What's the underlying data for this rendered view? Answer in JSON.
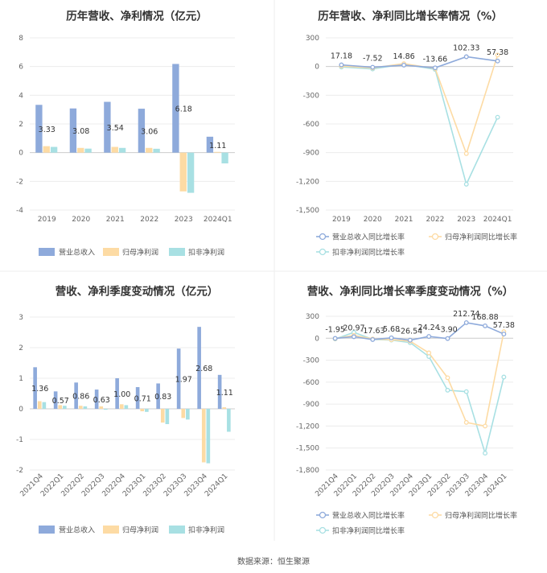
{
  "source": "数据来源：恒生聚源",
  "chart_data": [
    {
      "type": "bar",
      "title": "历年营收、净利情况（亿元）",
      "categories": [
        "2019",
        "2020",
        "2021",
        "2022",
        "2023",
        "2024Q1"
      ],
      "series": [
        {
          "name": "营业总收入",
          "color": "#8eaadb",
          "values": [
            3.33,
            3.08,
            3.54,
            3.06,
            6.18,
            1.11
          ]
        },
        {
          "name": "归母净利润",
          "color": "#fddba4",
          "values": [
            0.45,
            0.33,
            0.4,
            0.33,
            -2.7,
            0.05
          ]
        },
        {
          "name": "扣非净利润",
          "color": "#a8e0e3",
          "values": [
            0.4,
            0.28,
            0.33,
            0.27,
            -2.8,
            -0.75
          ]
        }
      ],
      "labels": [
        "3.33",
        "3.08",
        "3.54",
        "3.06",
        "6.18",
        "1.11"
      ],
      "ylim": [
        -4,
        8
      ],
      "yticks": [
        "8",
        "6",
        "4",
        "2",
        "0",
        "-2",
        "-4"
      ],
      "grid": true,
      "legend": "bottom"
    },
    {
      "type": "line",
      "title": "历年营收、净利同比增长率情况（%）",
      "categories": [
        "2019",
        "2020",
        "2021",
        "2022",
        "2023",
        "2024Q1"
      ],
      "series": [
        {
          "name": "营业总收入同比增长率",
          "color": "#8eaadb",
          "values": [
            17.18,
            -7.52,
            14.86,
            -13.66,
            102.33,
            57.38
          ]
        },
        {
          "name": "归母净利润同比增长率",
          "color": "#fddba4",
          "values": [
            5,
            -15,
            30,
            -20,
            -910,
            120
          ]
        },
        {
          "name": "扣非净利润同比增长率",
          "color": "#a8e0e3",
          "values": [
            -5,
            -25,
            25,
            -30,
            -1230,
            -530
          ]
        }
      ],
      "labels": [
        "17.18",
        "-7.52",
        "14.86",
        "-13.66",
        "102.33",
        "57.38"
      ],
      "ylim": [
        -1500,
        300
      ],
      "yticks": [
        "300",
        "0",
        "-300",
        "-600",
        "-900",
        "-1,200",
        "-1,500"
      ],
      "grid": true,
      "legend": "bottom"
    },
    {
      "type": "bar",
      "title": "营收、净利季度变动情况（亿元）",
      "categories": [
        "2021Q4",
        "2022Q1",
        "2022Q2",
        "2022Q3",
        "2022Q4",
        "2023Q1",
        "2023Q2",
        "2023Q3",
        "2023Q4",
        "2024Q1"
      ],
      "series": [
        {
          "name": "营业总收入",
          "color": "#8eaadb",
          "values": [
            1.36,
            0.57,
            0.86,
            0.63,
            1.0,
            0.71,
            0.83,
            1.97,
            2.68,
            1.11
          ]
        },
        {
          "name": "归母净利润",
          "color": "#fddba4",
          "values": [
            0.25,
            0.12,
            0.1,
            0.08,
            0.15,
            -0.08,
            -0.45,
            -0.3,
            -1.75,
            0.05
          ]
        },
        {
          "name": "扣非净利润",
          "color": "#a8e0e3",
          "values": [
            0.22,
            0.1,
            0.08,
            -0.03,
            0.12,
            -0.1,
            -0.5,
            -0.35,
            -1.78,
            -0.75
          ]
        }
      ],
      "labels": [
        "1.36",
        "0.57",
        "0.86",
        "0.63",
        "1.00",
        "0.71",
        "0.83",
        "1.97",
        "2.68",
        "1.11"
      ],
      "ylim": [
        -2,
        3
      ],
      "yticks": [
        "3",
        "2",
        "1",
        "0",
        "-1",
        "-2"
      ],
      "grid": true,
      "legend": "bottom"
    },
    {
      "type": "line",
      "title": "营收、净利同比增长率季度变动情况（%）",
      "categories": [
        "2021Q4",
        "2022Q1",
        "2022Q2",
        "2022Q3",
        "2022Q4",
        "2023Q1",
        "2023Q2",
        "2023Q3",
        "2023Q4",
        "2024Q1"
      ],
      "series": [
        {
          "name": "营业总收入同比增长率",
          "color": "#8eaadb",
          "values": [
            -1.95,
            20.97,
            -17.63,
            5.68,
            -26.54,
            24.24,
            -3.9,
            212.74,
            168.88,
            57.38
          ]
        },
        {
          "name": "归母净利润同比增长率",
          "color": "#fddba4",
          "values": [
            -5,
            40,
            -10,
            -20,
            -40,
            -200,
            -540,
            -1150,
            -1200,
            90
          ]
        },
        {
          "name": "扣非净利润同比增长率",
          "color": "#a8e0e3",
          "values": [
            -10,
            80,
            -15,
            -25,
            -60,
            -250,
            -710,
            -730,
            -1570,
            -530
          ]
        }
      ],
      "labels": [
        "-1.95",
        "20.97",
        "-17.63",
        "5.68",
        "-26.54",
        "24.24",
        "-3.90",
        "212.74",
        "168.88",
        "57.38"
      ],
      "ylim": [
        -1800,
        300
      ],
      "yticks": [
        "300",
        "0",
        "-300",
        "-600",
        "-900",
        "-1,200",
        "-1,500",
        "-1,800"
      ],
      "grid": true,
      "legend": "bottom"
    }
  ]
}
